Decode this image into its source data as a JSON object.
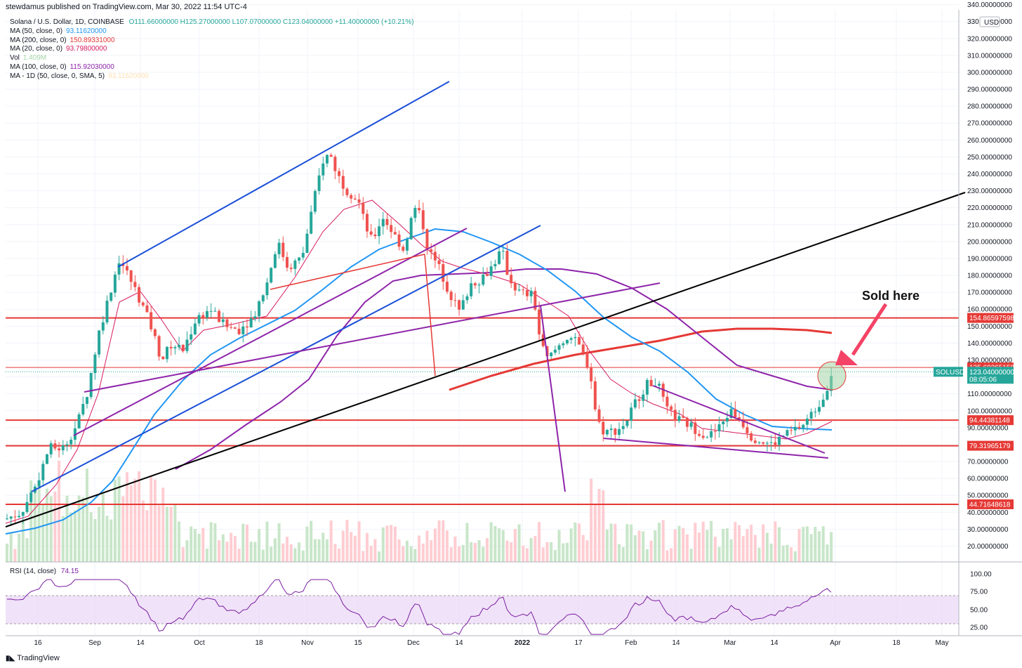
{
  "header": {
    "publisher": "stewdamus published on TradingView.com, Mar 30, 2022 11:54 UTC-4"
  },
  "legend": {
    "symbol": "Solana / U.S. Dollar, 1D, COINBASE",
    "ohlc": {
      "o": "O111.66000000",
      "h": "H125.27000000",
      "l": "L107.07000000",
      "c": "C123.04000000",
      "chg": "+11.40000000 (+10.21%)"
    },
    "indicators": [
      {
        "label": "MA (50, close, 0)",
        "value": "93.11620000",
        "color": "#2196f3"
      },
      {
        "label": "MA (200, close, 0)",
        "value": "150.89331000",
        "color": "#e53935"
      },
      {
        "label": "MA (20, close, 0)",
        "value": "93.79800000",
        "color": "#d81b60"
      },
      {
        "label": "Vol",
        "value": "1.409M",
        "color": "#a5d6a7"
      },
      {
        "label": "MA (100, close, 0)",
        "value": "115.92030000",
        "color": "#8e24aa"
      },
      {
        "label": "MA - 1D (50, close, 0, SMA, 5)",
        "value": "93.11620000",
        "color": "#ffe0b2"
      }
    ]
  },
  "price_axis": {
    "currency": "USD",
    "ticks": [
      "340.00000000",
      "330.00000000",
      "320.00000000",
      "310.00000000",
      "300.00000000",
      "290.00000000",
      "280.00000000",
      "270.00000000",
      "260.00000000",
      "250.00000000",
      "240.00000000",
      "230.00000000",
      "220.00000000",
      "210.00000000",
      "200.00000000",
      "190.00000000",
      "180.00000000",
      "170.00000000",
      "160.00000000",
      "150.00000000",
      "140.00000000",
      "130.00000000",
      "120.00000000",
      "110.00000000",
      "100.00000000",
      "90.00000000",
      "80.00000000",
      "70.00000000",
      "60.00000000",
      "50.00000000",
      "40.00000000",
      "30.00000000",
      "20.00000000"
    ],
    "tags": [
      {
        "text": "154.86597598",
        "color": "#e53935"
      },
      {
        "text": "125.60265158",
        "color": "#e53935"
      },
      {
        "text": "94.44381148",
        "color": "#e53935"
      },
      {
        "text": "79.31965179",
        "color": "#e53935"
      },
      {
        "text": "44.71648618",
        "color": "#e53935"
      }
    ],
    "last": {
      "symbol": "SOLUSD",
      "price": "123.04000000",
      "countdown": "08:05:06",
      "color": "#26a69a"
    }
  },
  "rsi": {
    "label": "RSI (14, close)",
    "value": "74.15",
    "ticks": [
      "100.00",
      "75.00",
      "50.00",
      "25.00"
    ]
  },
  "time_axis": {
    "ticks": [
      "16",
      "Sep",
      "14",
      "Oct",
      "18",
      "Nov",
      "15",
      "Dec",
      "14",
      "2022",
      "17",
      "Feb",
      "14",
      "Mar",
      "14",
      "Apr",
      "18",
      "May"
    ]
  },
  "annotation": {
    "text": "Sold here"
  },
  "footer": {
    "brand": "TradingView"
  },
  "colors": {
    "up": "#26a69a",
    "down": "#ef5350",
    "hline": "#e53935",
    "ma50": "#2196f3",
    "ma100": "#8e24aa",
    "ma20": "#d81b60",
    "ma200": "#e53935"
  }
}
